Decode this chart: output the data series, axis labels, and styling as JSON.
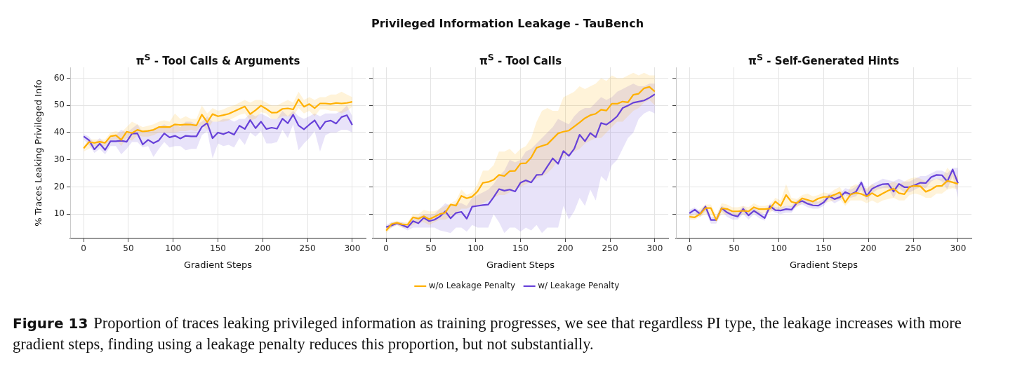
{
  "chart_data": [
    {
      "type": "other",
      "title": "Privileged Information Leakage - TauBench",
      "annotations": [
        "Figure 13",
        "Proportion of traces leaking privileged information as training progresses, we see that regardless PI type, the leakage increases with more gradient steps, finding using a leakage penalty reduces this proportion, but not substantially."
      ]
    },
    {
      "type": "line",
      "title": "π$^{S}$ - Tool Calls & Arguments",
      "xlabel": "Gradient Steps",
      "ylabel": "% Traces Leaking Privileged Info",
      "xlim": [
        -15,
        315
      ],
      "xticks": [
        0,
        50,
        100,
        150,
        200,
        250,
        300
      ],
      "ylim": [
        1,
        64
      ],
      "yticks": [
        10,
        20,
        30,
        40,
        50,
        60
      ],
      "grid": true,
      "marker": "none",
      "line_style": "solid",
      "x": [
        0,
        6,
        12,
        18,
        24,
        30,
        36,
        42,
        48,
        54,
        60,
        66,
        72,
        78,
        84,
        90,
        96,
        102,
        108,
        114,
        120,
        126,
        132,
        138,
        144,
        150,
        156,
        162,
        168,
        174,
        180,
        186,
        192,
        198,
        204,
        210,
        216,
        222,
        228,
        234,
        240,
        246,
        252,
        258,
        264,
        270,
        276,
        282,
        288,
        294,
        300
      ],
      "series": [
        {
          "color": "#ffb000",
          "values": [
            34.2,
            36.5,
            36.2,
            36.6,
            36.2,
            38.6,
            39,
            37.3,
            40.3,
            39.8,
            41,
            40.4,
            40.6,
            41,
            42,
            42,
            42,
            43,
            42.8,
            43,
            42.9,
            42.6,
            46.6,
            43.8,
            46.8,
            46,
            46.4,
            46.9,
            47.8,
            48.7,
            49.6,
            46.8,
            48.2,
            49.9,
            48.7,
            47.3,
            47.4,
            48.7,
            48.9,
            48.5,
            52.2,
            49.5,
            50.5,
            49,
            50.7,
            50.7,
            50.5,
            50.9,
            50.7,
            50.9,
            51.3
          ],
          "upper": [
            35,
            37.5,
            37.5,
            37.5,
            37.5,
            40,
            40.5,
            40,
            42,
            44,
            43,
            42,
            42.5,
            43,
            44,
            44.5,
            44,
            47,
            45,
            46,
            45,
            45,
            50,
            47,
            49,
            48,
            48.5,
            49.5,
            50,
            51,
            52,
            51,
            52,
            52,
            51,
            50,
            50,
            51,
            52,
            51,
            55,
            52,
            53,
            52,
            53,
            53,
            54,
            54,
            55,
            54,
            53
          ],
          "lower": [
            33,
            34,
            35,
            35,
            35,
            37,
            37.5,
            35,
            38,
            37,
            39,
            38.5,
            38.5,
            39,
            40,
            40,
            40,
            40,
            40.5,
            40.5,
            41,
            40.5,
            43,
            41,
            44,
            44,
            44,
            44.5,
            45.5,
            46.5,
            47,
            44.5,
            45,
            47.5,
            47,
            45,
            45,
            46,
            46,
            46,
            49,
            47,
            48,
            46,
            48.5,
            48.5,
            48,
            48,
            47,
            48,
            49.5
          ]
        },
        {
          "color": "#6741d9",
          "values": [
            38.6,
            37.2,
            33.8,
            35.9,
            33.6,
            36.8,
            36.8,
            37,
            36.6,
            39.6,
            39.7,
            35.6,
            37.3,
            36.1,
            37.1,
            39.7,
            38.2,
            38.8,
            37.8,
            38.8,
            38.6,
            38.6,
            42.1,
            43.5,
            37.9,
            40,
            39.4,
            40.2,
            39.2,
            42.5,
            41.3,
            44.6,
            41.6,
            44,
            41.3,
            41.8,
            41.4,
            45.1,
            43.4,
            46.6,
            42.6,
            41.2,
            42.9,
            44.5,
            41.3,
            44,
            44.4,
            43.3,
            45.7,
            46.4,
            42.8
          ],
          "upper": [
            39.5,
            38.5,
            36,
            38,
            36,
            38,
            39,
            41,
            40,
            41.5,
            43,
            40,
            41,
            41,
            42,
            43,
            42,
            43,
            42,
            44,
            44,
            43,
            44,
            46,
            44,
            44,
            45,
            45,
            44,
            45,
            45,
            47,
            46,
            47,
            46,
            45,
            45,
            48,
            46,
            48,
            46,
            45,
            46,
            47,
            46,
            47,
            47,
            47,
            48,
            50,
            46
          ],
          "lower": [
            37.5,
            35.5,
            32.5,
            34,
            32,
            35,
            35,
            32,
            34,
            36.5,
            36.5,
            34.5,
            35,
            31,
            34,
            36.5,
            34.5,
            35,
            35,
            33.5,
            34,
            34,
            39,
            40.5,
            30.5,
            36,
            35,
            35.5,
            34.5,
            38,
            35.5,
            40,
            38.5,
            40.5,
            36,
            36,
            36.5,
            41,
            38,
            43,
            33.5,
            36,
            38,
            40.5,
            33,
            39,
            40,
            40,
            41,
            41,
            40
          ]
        }
      ]
    },
    {
      "type": "line",
      "title": "π$^{S}$ - Tool Calls",
      "xlabel": "Gradient Steps",
      "xlim": [
        -15,
        315
      ],
      "xticks": [
        0,
        50,
        100,
        150,
        200,
        250,
        300
      ],
      "ylim": [
        1,
        64
      ],
      "yticks": [
        10,
        20,
        30,
        40,
        50,
        60
      ],
      "tick_labels": "x",
      "grid": true,
      "marker": "none",
      "line_style": "solid",
      "legend": "bottom",
      "x": [
        0,
        6,
        12,
        18,
        24,
        30,
        36,
        42,
        48,
        54,
        60,
        66,
        72,
        78,
        84,
        90,
        96,
        102,
        108,
        114,
        120,
        126,
        132,
        138,
        144,
        150,
        156,
        162,
        168,
        174,
        180,
        186,
        192,
        198,
        204,
        210,
        216,
        222,
        228,
        234,
        240,
        246,
        252,
        258,
        264,
        270,
        276,
        282,
        288,
        294,
        300
      ],
      "series": [
        {
          "name": "w/o Leakage Penalty",
          "color": "#ffb000",
          "values": [
            3.9,
            6.3,
            6.8,
            6.2,
            6.1,
            8.8,
            8.3,
            9.2,
            8.1,
            9,
            10,
            10.5,
            13.5,
            13.1,
            16.7,
            15.8,
            16.4,
            18.3,
            21.5,
            21.8,
            22.6,
            24.4,
            24,
            25.8,
            25.9,
            28.6,
            28.7,
            30.8,
            34.4,
            35.1,
            35.7,
            37.7,
            39.7,
            40.3,
            40.7,
            42.2,
            43.7,
            45.3,
            46.4,
            46.9,
            48.4,
            48.1,
            50.6,
            50.6,
            51.4,
            51.1,
            53.9,
            54.3,
            56.3,
            56.8,
            55.1
          ],
          "upper": [
            5,
            7,
            7.5,
            7,
            7,
            10,
            10,
            11.5,
            11,
            11,
            12,
            13,
            14,
            15,
            19,
            17,
            18,
            21,
            26,
            26,
            28,
            33,
            33,
            34,
            32,
            34,
            35,
            38,
            44,
            48,
            49,
            48,
            48,
            53,
            54,
            55,
            57,
            56,
            57,
            58,
            60,
            59,
            61,
            60,
            60,
            61,
            62,
            61,
            62,
            61,
            61
          ],
          "lower": [
            3,
            5,
            6,
            5,
            5,
            6,
            7,
            7,
            6,
            7,
            8,
            8,
            9,
            10,
            12,
            12,
            13,
            13,
            14,
            15,
            16,
            17,
            17,
            18,
            19,
            20,
            21,
            22,
            23,
            24,
            25,
            27,
            30,
            31,
            32,
            33,
            34,
            36,
            37,
            38,
            38,
            40,
            42,
            44,
            44,
            46,
            48,
            49,
            51,
            52,
            50
          ]
        },
        {
          "name": "w/ Leakage Penalty",
          "color": "#6741d9",
          "values": [
            5.2,
            5.8,
            6.6,
            5.9,
            5.1,
            7.4,
            6.6,
            8.6,
            7.4,
            7.9,
            9.1,
            11,
            8.4,
            10.4,
            10.8,
            8.3,
            12.7,
            13,
            13.3,
            13.5,
            16.2,
            19.2,
            18.6,
            19,
            18.3,
            21.5,
            22.4,
            21.6,
            24.4,
            24.5,
            27.5,
            30.5,
            28.5,
            33.2,
            31.4,
            34,
            39.2,
            36.8,
            39.8,
            38.3,
            43.5,
            42.9,
            44.3,
            46,
            49,
            49.9,
            51,
            51.4,
            51.8,
            52.8,
            54.1
          ],
          "upper": [
            6,
            7,
            7,
            7,
            6,
            9,
            9,
            10,
            10,
            10,
            12,
            14,
            13,
            14,
            14,
            13,
            16,
            17,
            18,
            19,
            21,
            24,
            26,
            30,
            29,
            30,
            33,
            34,
            36,
            38,
            40,
            42,
            45,
            44,
            43,
            46,
            48,
            49,
            49,
            51,
            53,
            52,
            53,
            55,
            56,
            57,
            58,
            57,
            57,
            58,
            58
          ],
          "lower": [
            4,
            5,
            6,
            5,
            4,
            5,
            5,
            5,
            5,
            5,
            4,
            3.5,
            3,
            5,
            5,
            3.5,
            6,
            5,
            5,
            5,
            10,
            7,
            3,
            5,
            5,
            3.5,
            5,
            4,
            6,
            3,
            5,
            5,
            5,
            13,
            8,
            11,
            16,
            13,
            19,
            15,
            24,
            22,
            28,
            30,
            34,
            38,
            40,
            45,
            47,
            48,
            47
          ]
        }
      ]
    },
    {
      "type": "line",
      "title": "π$^{S}$ - Self-Generated Hints",
      "xlabel": "Gradient Steps",
      "xlim": [
        -15,
        315
      ],
      "xticks": [
        0,
        50,
        100,
        150,
        200,
        250,
        300
      ],
      "ylim": [
        1,
        64
      ],
      "yticks": [
        10,
        20,
        30,
        40,
        50,
        60
      ],
      "tick_labels": "x",
      "grid": true,
      "marker": "none",
      "line_style": "solid",
      "x": [
        0,
        6,
        12,
        18,
        24,
        30,
        36,
        42,
        48,
        54,
        60,
        66,
        72,
        78,
        84,
        90,
        96,
        102,
        108,
        114,
        120,
        126,
        132,
        138,
        144,
        150,
        156,
        162,
        168,
        174,
        180,
        186,
        192,
        198,
        204,
        210,
        216,
        222,
        228,
        234,
        240,
        246,
        252,
        258,
        264,
        270,
        276,
        282,
        288,
        294,
        300
      ],
      "series": [
        {
          "color": "#ffb000",
          "values": [
            9,
            8.8,
            10,
            12.2,
            12.2,
            7.8,
            12.1,
            11.9,
            11,
            11,
            11.2,
            11,
            12.5,
            11.8,
            11.8,
            12,
            14.6,
            13,
            17,
            14.5,
            14,
            15.8,
            15.2,
            14.6,
            15.7,
            16.3,
            16.3,
            17.1,
            18,
            14.3,
            17.2,
            17.8,
            17.4,
            16.5,
            17.7,
            16.5,
            17.6,
            18.6,
            19.4,
            17.7,
            17.3,
            20.1,
            20.4,
            20.2,
            18.2,
            19,
            20.3,
            20.4,
            22.2,
            21.7,
            21.1
          ],
          "upper": [
            10,
            10,
            12,
            13.5,
            13.5,
            9.5,
            14,
            13.5,
            12.5,
            12.5,
            13,
            12.5,
            14,
            13,
            13,
            13.5,
            16,
            15,
            21,
            16,
            15.5,
            17,
            17.5,
            16.5,
            17,
            18,
            17.5,
            19,
            20,
            16.5,
            20,
            21,
            20,
            19.5,
            21,
            20,
            20,
            21,
            22,
            21,
            22,
            23,
            23.5,
            23,
            22,
            22.5,
            23,
            23,
            27,
            25,
            24
          ],
          "lower": [
            8,
            8,
            9,
            10,
            10,
            7,
            10,
            10,
            9.5,
            9.5,
            10,
            9.5,
            10.5,
            10,
            10.5,
            10.5,
            12,
            11,
            13,
            12.5,
            12.5,
            14,
            13.5,
            13,
            14,
            14,
            14.5,
            15,
            15.5,
            13,
            15,
            15,
            15,
            14,
            15,
            14,
            15,
            15.5,
            16,
            15,
            15,
            17,
            17.5,
            17,
            16,
            16,
            17.5,
            17.5,
            19,
            19.5,
            19
          ]
        },
        {
          "color": "#6741d9",
          "values": [
            10.3,
            11.6,
            10,
            12.8,
            7.8,
            7.8,
            12.2,
            10.6,
            9.6,
            9.1,
            11.9,
            9.5,
            11.2,
            9.9,
            8.5,
            12.9,
            11.4,
            11.3,
            11.8,
            11.6,
            14.1,
            14.8,
            13.8,
            13.2,
            13.1,
            14.3,
            16.6,
            15.5,
            16.2,
            18.1,
            17.2,
            18.2,
            21.6,
            16.6,
            19.3,
            20.3,
            21,
            21.1,
            18.3,
            21.1,
            19.9,
            19.9,
            20.7,
            21.5,
            21.4,
            23.6,
            24.4,
            24.3,
            22,
            26.4,
            21.3
          ],
          "upper": [
            11.5,
            12.5,
            11,
            13.5,
            9,
            9,
            13,
            12,
            11,
            10.5,
            13,
            11,
            12.5,
            11,
            10,
            14,
            12.5,
            12.5,
            13,
            13,
            15,
            16,
            15,
            15,
            14.5,
            15.5,
            17.5,
            17,
            17.5,
            19.5,
            19,
            20,
            22.5,
            19,
            21,
            22,
            23,
            22.5,
            22,
            23,
            22,
            22,
            23,
            24,
            24,
            25,
            26,
            26,
            25,
            27,
            27
          ],
          "lower": [
            9,
            10,
            9,
            11,
            6.5,
            6.5,
            11,
            9,
            8,
            8,
            10,
            8,
            10,
            8.5,
            7.5,
            11.5,
            10.5,
            10,
            10.5,
            10.5,
            13,
            13.5,
            12.5,
            12,
            12,
            13,
            15.5,
            14,
            15,
            17,
            16,
            16.5,
            19,
            15,
            17.5,
            19,
            19.5,
            19.5,
            16,
            19.5,
            18,
            18,
            19,
            20,
            19.5,
            22,
            23,
            22,
            19,
            24,
            16
          ]
        }
      ]
    }
  ]
}
